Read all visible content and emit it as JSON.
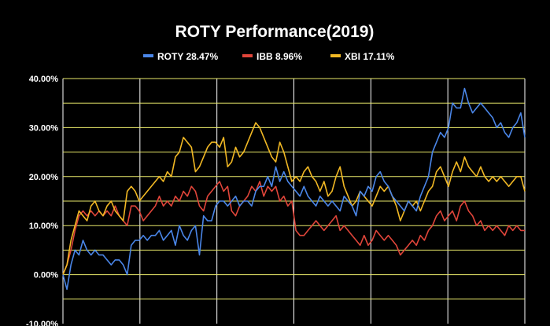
{
  "chart_data": {
    "type": "line",
    "title": "ROTY Performance(2019)",
    "xlabel": "",
    "ylabel": "",
    "ylim": [
      -0.1,
      0.4
    ],
    "yticks": [
      {
        "value": 0.4,
        "label": "40.00%"
      },
      {
        "value": 0.3,
        "label": "30.00%"
      },
      {
        "value": 0.2,
        "label": "20.00%"
      },
      {
        "value": 0.1,
        "label": "10.00%"
      },
      {
        "value": 0.0,
        "label": "0.00%"
      },
      {
        "value": -0.1,
        "label": "-10.00%"
      }
    ],
    "horizontal_grid": [
      0.4,
      0.35,
      0.3,
      0.25,
      0.2,
      0.15,
      0.1,
      0.05,
      0.0,
      -0.05
    ],
    "grid_color": "#e8e86a",
    "vertical_grid": true,
    "legend_position": "top",
    "series": [
      {
        "name": "ROTY 28.47%",
        "color": "#4a86e8",
        "values": [
          0.0,
          -0.03,
          0.02,
          0.05,
          0.04,
          0.07,
          0.05,
          0.04,
          0.05,
          0.04,
          0.04,
          0.03,
          0.02,
          0.03,
          0.03,
          0.02,
          0.0,
          0.06,
          0.07,
          0.07,
          0.08,
          0.07,
          0.08,
          0.08,
          0.09,
          0.07,
          0.08,
          0.09,
          0.06,
          0.1,
          0.08,
          0.07,
          0.09,
          0.1,
          0.04,
          0.12,
          0.11,
          0.11,
          0.14,
          0.15,
          0.15,
          0.14,
          0.15,
          0.16,
          0.14,
          0.15,
          0.15,
          0.14,
          0.17,
          0.18,
          0.18,
          0.2,
          0.18,
          0.22,
          0.19,
          0.21,
          0.19,
          0.18,
          0.17,
          0.16,
          0.18,
          0.16,
          0.15,
          0.14,
          0.16,
          0.15,
          0.14,
          0.15,
          0.14,
          0.13,
          0.16,
          0.15,
          0.14,
          0.12,
          0.17,
          0.16,
          0.18,
          0.17,
          0.2,
          0.21,
          0.19,
          0.18,
          0.16,
          0.15,
          0.14,
          0.13,
          0.15,
          0.14,
          0.13,
          0.16,
          0.18,
          0.2,
          0.25,
          0.27,
          0.29,
          0.28,
          0.3,
          0.35,
          0.34,
          0.34,
          0.38,
          0.35,
          0.33,
          0.34,
          0.35,
          0.34,
          0.33,
          0.32,
          0.3,
          0.31,
          0.29,
          0.28,
          0.3,
          0.31,
          0.33,
          0.28
        ]
      },
      {
        "name": "IBB 8.96%",
        "color": "#e0453a",
        "values": [
          0.0,
          0.02,
          0.05,
          0.09,
          0.12,
          0.13,
          0.12,
          0.13,
          0.12,
          0.13,
          0.12,
          0.13,
          0.12,
          0.14,
          0.12,
          0.11,
          0.1,
          0.14,
          0.14,
          0.13,
          0.11,
          0.12,
          0.13,
          0.14,
          0.16,
          0.14,
          0.15,
          0.14,
          0.16,
          0.15,
          0.17,
          0.16,
          0.18,
          0.17,
          0.14,
          0.13,
          0.16,
          0.17,
          0.18,
          0.19,
          0.17,
          0.18,
          0.13,
          0.12,
          0.14,
          0.15,
          0.16,
          0.18,
          0.17,
          0.19,
          0.16,
          0.18,
          0.17,
          0.18,
          0.15,
          0.16,
          0.14,
          0.15,
          0.09,
          0.08,
          0.08,
          0.09,
          0.1,
          0.11,
          0.1,
          0.09,
          0.1,
          0.11,
          0.12,
          0.09,
          0.1,
          0.09,
          0.08,
          0.07,
          0.06,
          0.08,
          0.06,
          0.07,
          0.09,
          0.08,
          0.07,
          0.08,
          0.07,
          0.06,
          0.04,
          0.05,
          0.06,
          0.07,
          0.06,
          0.08,
          0.07,
          0.09,
          0.1,
          0.12,
          0.13,
          0.11,
          0.12,
          0.13,
          0.11,
          0.14,
          0.15,
          0.13,
          0.12,
          0.1,
          0.11,
          0.09,
          0.1,
          0.09,
          0.1,
          0.09,
          0.08,
          0.1,
          0.09,
          0.1,
          0.09,
          0.09
        ]
      },
      {
        "name": "XBI 17.11%",
        "color": "#f1b824",
        "values": [
          0.0,
          0.02,
          0.07,
          0.1,
          0.13,
          0.12,
          0.11,
          0.14,
          0.15,
          0.13,
          0.12,
          0.14,
          0.15,
          0.13,
          0.12,
          0.11,
          0.17,
          0.18,
          0.17,
          0.15,
          0.16,
          0.17,
          0.18,
          0.19,
          0.2,
          0.19,
          0.21,
          0.2,
          0.24,
          0.25,
          0.28,
          0.27,
          0.26,
          0.21,
          0.22,
          0.24,
          0.26,
          0.27,
          0.27,
          0.26,
          0.28,
          0.22,
          0.23,
          0.26,
          0.24,
          0.25,
          0.27,
          0.29,
          0.31,
          0.3,
          0.28,
          0.26,
          0.24,
          0.23,
          0.27,
          0.25,
          0.22,
          0.19,
          0.2,
          0.19,
          0.21,
          0.22,
          0.2,
          0.19,
          0.17,
          0.19,
          0.16,
          0.17,
          0.2,
          0.22,
          0.18,
          0.16,
          0.14,
          0.15,
          0.17,
          0.16,
          0.15,
          0.14,
          0.16,
          0.18,
          0.17,
          0.18,
          0.16,
          0.14,
          0.11,
          0.13,
          0.15,
          0.14,
          0.15,
          0.13,
          0.15,
          0.17,
          0.18,
          0.21,
          0.22,
          0.2,
          0.18,
          0.21,
          0.23,
          0.21,
          0.24,
          0.22,
          0.21,
          0.2,
          0.22,
          0.2,
          0.19,
          0.2,
          0.19,
          0.2,
          0.19,
          0.18,
          0.19,
          0.2,
          0.2,
          0.17
        ]
      }
    ]
  }
}
